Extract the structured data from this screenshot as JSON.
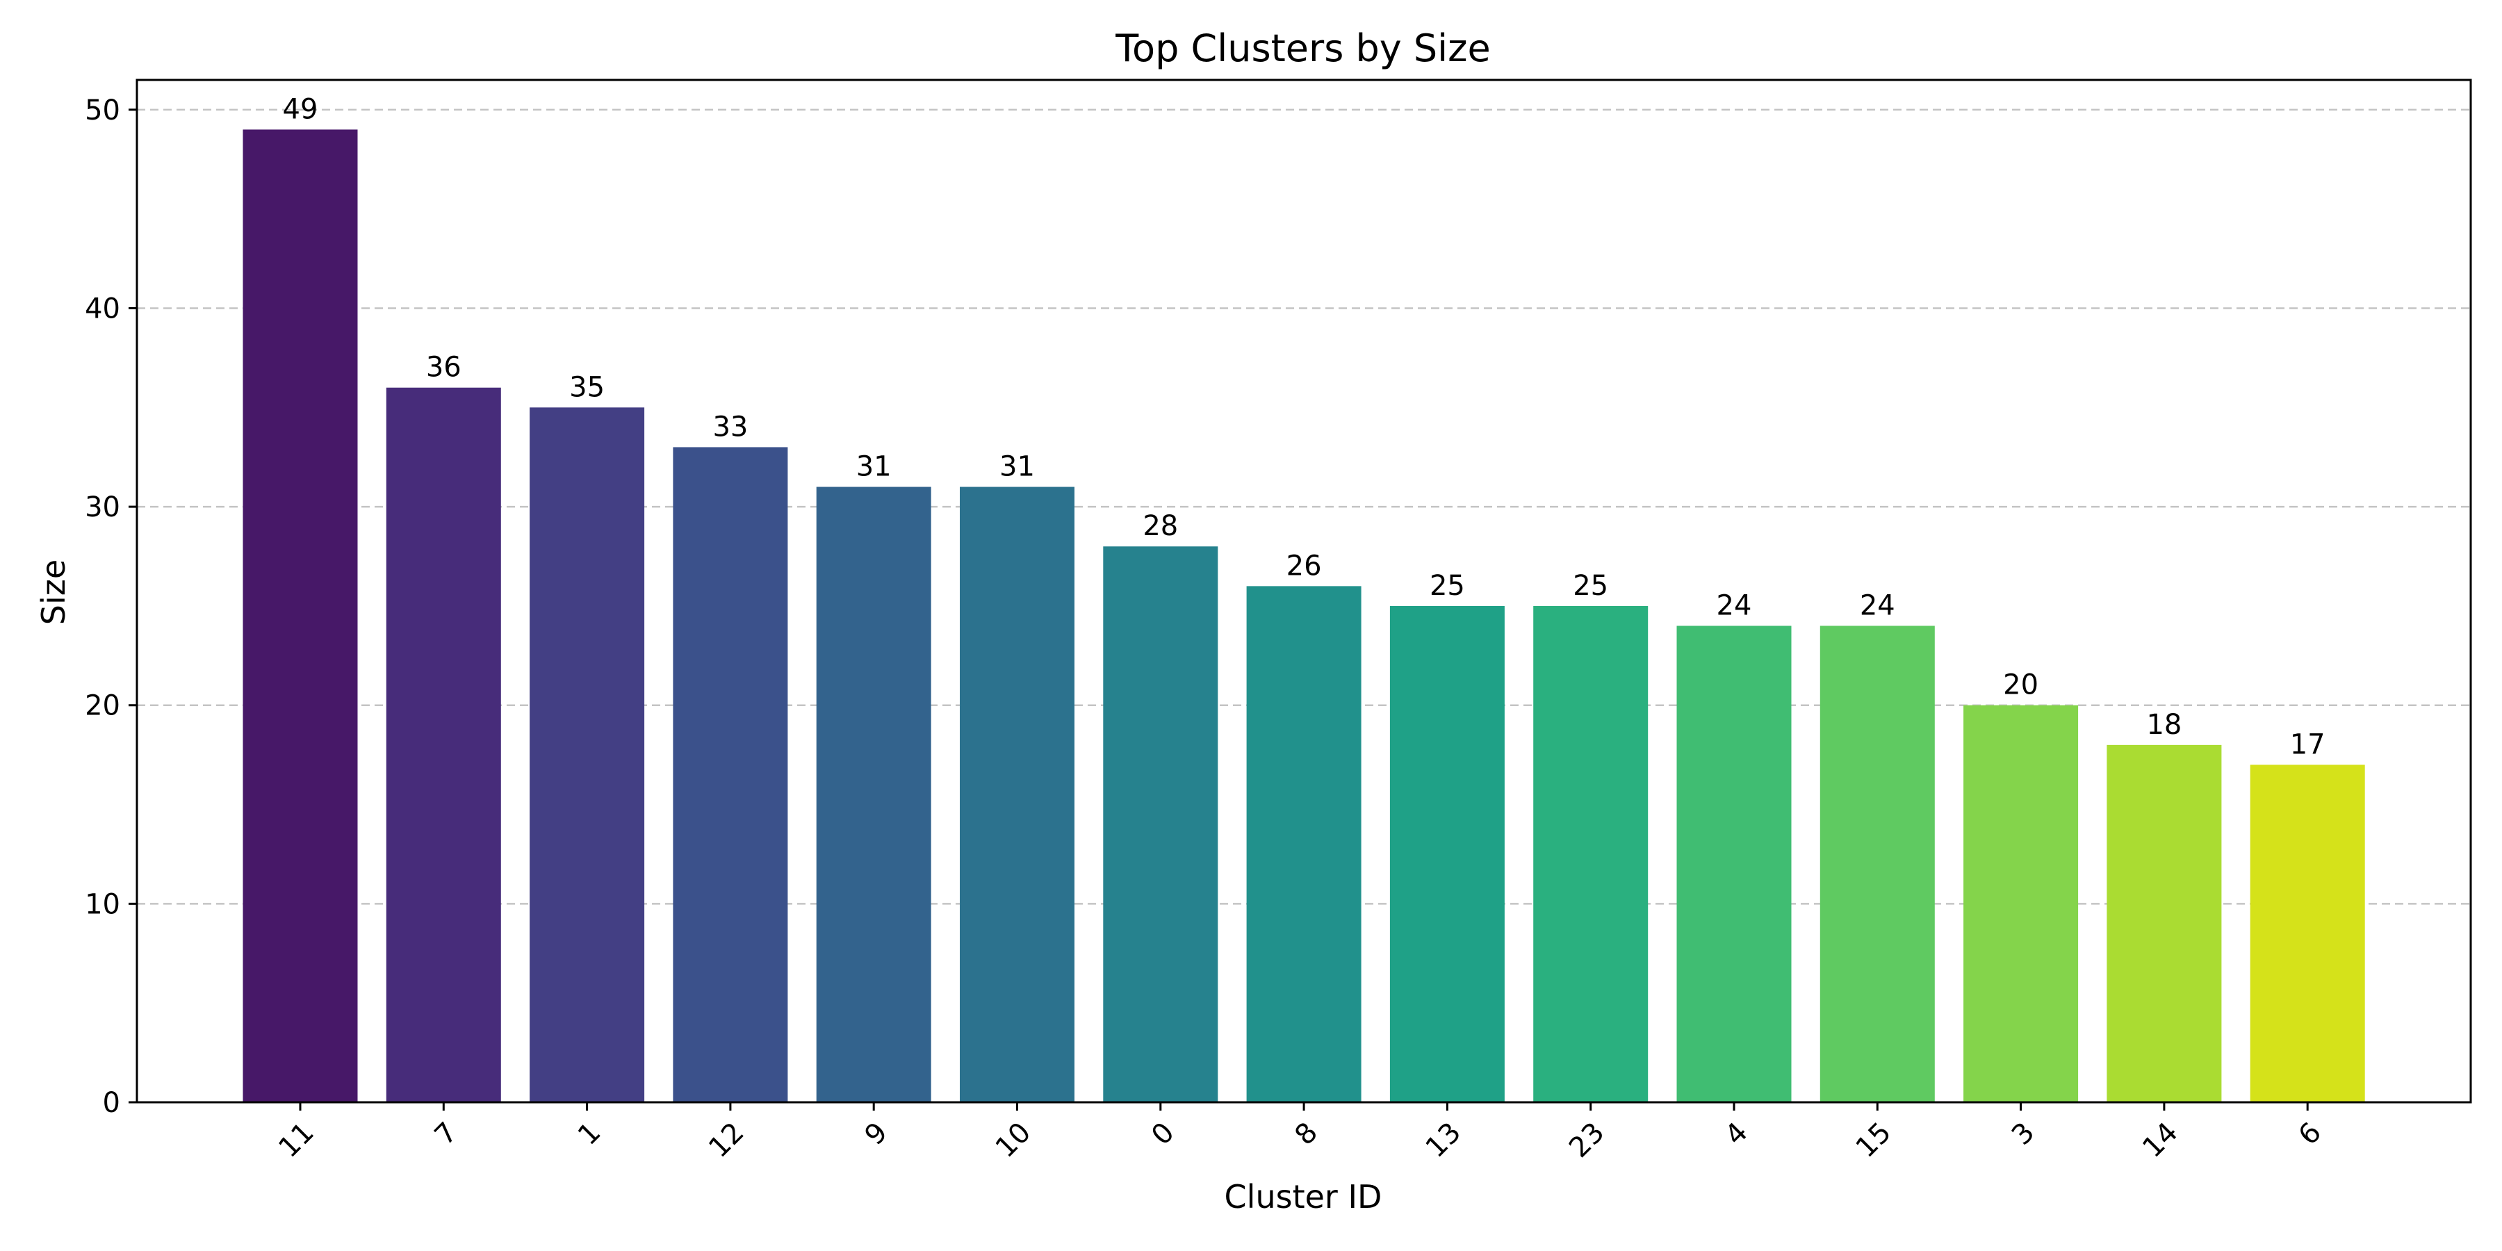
{
  "chart_data": {
    "type": "bar",
    "title": "Top Clusters by Size",
    "xlabel": "Cluster ID",
    "ylabel": "Size",
    "categories": [
      "11",
      "7",
      "1",
      "12",
      "9",
      "10",
      "0",
      "8",
      "13",
      "23",
      "4",
      "15",
      "3",
      "14",
      "6"
    ],
    "values": [
      49,
      36,
      35,
      33,
      31,
      31,
      28,
      26,
      25,
      25,
      24,
      24,
      20,
      18,
      17
    ],
    "colors": [
      "#471868",
      "#472c7a",
      "#433f84",
      "#3b518b",
      "#33638d",
      "#2c728e",
      "#26828e",
      "#21918c",
      "#1fa187",
      "#2ab07f",
      "#40bd72",
      "#5fca61",
      "#84d44b",
      "#aadc32",
      "#d5e21a"
    ],
    "ylim": [
      0,
      51.5
    ],
    "yticks": [
      0,
      10,
      20,
      30,
      40,
      50
    ],
    "ytick_labels": [
      "0",
      "10",
      "20",
      "30",
      "40",
      "50"
    ],
    "grid": {
      "axis": "y",
      "style": "dashed"
    },
    "legend": "none"
  }
}
